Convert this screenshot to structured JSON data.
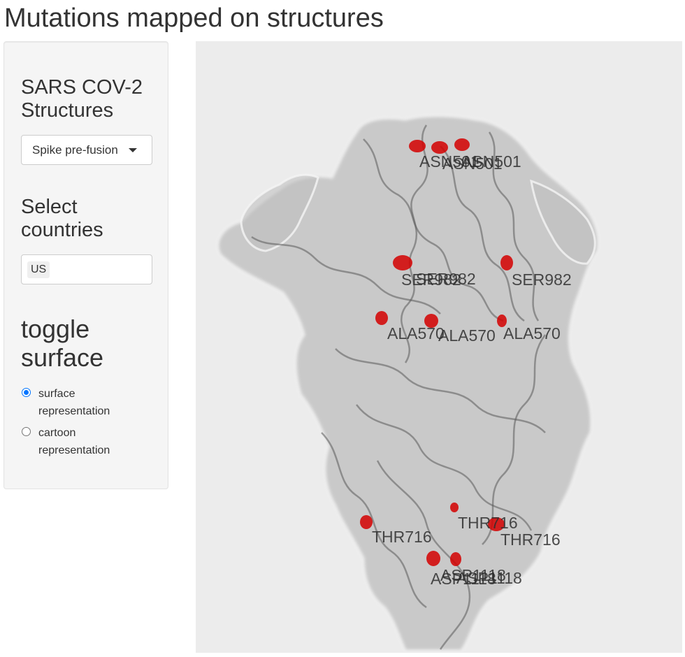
{
  "page": {
    "title": "Mutations mapped on structures"
  },
  "sidebar": {
    "structures_heading": "SARS COV-2 Structures",
    "structure_select": {
      "selected": "Spike pre-fusion"
    },
    "countries_heading": "Select countries",
    "countries_input": {
      "tags": [
        "US"
      ]
    },
    "toggle_heading": "toggle surface",
    "surface_options": [
      {
        "label": "surface representation",
        "checked": true
      },
      {
        "label": "cartoon representation",
        "checked": false
      }
    ]
  },
  "viewer": {
    "background": "#ececec",
    "surface_color": "#bdbdbd",
    "cartoon_color": "#5a5a5a",
    "mutation_color": "#d40000",
    "residue_labels": [
      "ASN501",
      "ASN501",
      "ASN501",
      "SER982",
      "SER982",
      "SER982",
      "ALA570",
      "ALA570",
      "ALA570",
      "THR716",
      "THR716",
      "THR716",
      "ASP1118",
      "ASP1118",
      "ASP1118"
    ]
  }
}
